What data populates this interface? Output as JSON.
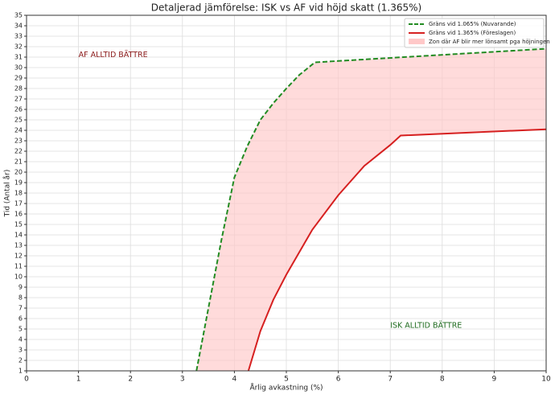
{
  "chart_data": {
    "type": "line",
    "title": "Detaljerad jämförelse: ISK vs AF vid höjd skatt (1.365%)",
    "xlabel": "Årlig avkastning (%)",
    "ylabel": "Tid (Antal år)",
    "xlim": [
      0,
      10
    ],
    "ylim": [
      1,
      35
    ],
    "xticks": [
      0,
      1,
      2,
      3,
      4,
      5,
      6,
      7,
      8,
      9,
      10
    ],
    "yticks": [
      1,
      2,
      3,
      4,
      5,
      6,
      7,
      8,
      9,
      10,
      11,
      12,
      13,
      14,
      15,
      16,
      17,
      18,
      19,
      20,
      21,
      22,
      23,
      24,
      25,
      26,
      27,
      28,
      29,
      30,
      31,
      32,
      33,
      34,
      35
    ],
    "grid": true,
    "legend": "upper right",
    "series": [
      {
        "name": "Gräns vid 1.065% (Nuvarande)",
        "color": "#228b22",
        "dash": true,
        "x": [
          3.27,
          3.5,
          3.75,
          4,
          4.25,
          4.5,
          4.75,
          5,
          5.25,
          5.55,
          10
        ],
        "values": [
          1,
          7,
          13.5,
          19.5,
          22.5,
          25,
          26.6,
          28,
          29.3,
          30.5,
          31.8
        ]
      },
      {
        "name": "Gräns vid 1.365% (Föreslagen)",
        "color": "#d62020",
        "dash": false,
        "x": [
          4.27,
          4.5,
          4.75,
          5,
          5.5,
          6,
          6.5,
          7,
          7.2,
          10
        ],
        "values": [
          1,
          4.8,
          7.8,
          10.2,
          14.5,
          17.8,
          20.6,
          22.6,
          23.5,
          24.1
        ]
      }
    ],
    "fill": {
      "name": "Zon där AF blir mer lönsamt pga höjningen",
      "color": "#ffc8c8"
    },
    "annotations": [
      {
        "text": "AF ALLTID BÄTTRE",
        "x": 1,
        "y": 31.2,
        "color": "#8b1a1a"
      },
      {
        "text": "ISK ALLTID BÄTTRE",
        "x": 7,
        "y": 5.3,
        "color": "#1f6b1f"
      }
    ]
  }
}
